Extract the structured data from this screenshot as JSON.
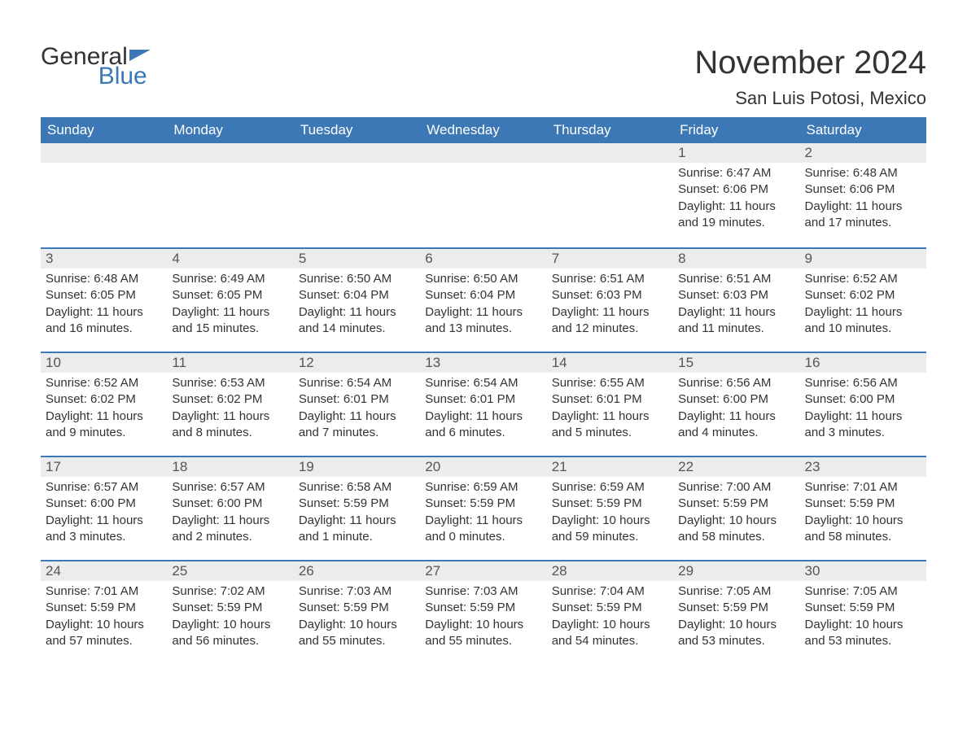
{
  "logo": {
    "text1": "General",
    "text2": "Blue"
  },
  "title": "November 2024",
  "location": "San Luis Potosi, Mexico",
  "colors": {
    "header_bg": "#3b78b5",
    "header_text": "#ffffff",
    "daynum_bg": "#ececec",
    "border": "#3b78b5",
    "text": "#333333",
    "logo_accent": "#3b78b5"
  },
  "daysOfWeek": [
    "Sunday",
    "Monday",
    "Tuesday",
    "Wednesday",
    "Thursday",
    "Friday",
    "Saturday"
  ],
  "weeks": [
    [
      null,
      null,
      null,
      null,
      null,
      {
        "n": "1",
        "sunrise": "Sunrise: 6:47 AM",
        "sunset": "Sunset: 6:06 PM",
        "daylight": "Daylight: 11 hours and 19 minutes."
      },
      {
        "n": "2",
        "sunrise": "Sunrise: 6:48 AM",
        "sunset": "Sunset: 6:06 PM",
        "daylight": "Daylight: 11 hours and 17 minutes."
      }
    ],
    [
      {
        "n": "3",
        "sunrise": "Sunrise: 6:48 AM",
        "sunset": "Sunset: 6:05 PM",
        "daylight": "Daylight: 11 hours and 16 minutes."
      },
      {
        "n": "4",
        "sunrise": "Sunrise: 6:49 AM",
        "sunset": "Sunset: 6:05 PM",
        "daylight": "Daylight: 11 hours and 15 minutes."
      },
      {
        "n": "5",
        "sunrise": "Sunrise: 6:50 AM",
        "sunset": "Sunset: 6:04 PM",
        "daylight": "Daylight: 11 hours and 14 minutes."
      },
      {
        "n": "6",
        "sunrise": "Sunrise: 6:50 AM",
        "sunset": "Sunset: 6:04 PM",
        "daylight": "Daylight: 11 hours and 13 minutes."
      },
      {
        "n": "7",
        "sunrise": "Sunrise: 6:51 AM",
        "sunset": "Sunset: 6:03 PM",
        "daylight": "Daylight: 11 hours and 12 minutes."
      },
      {
        "n": "8",
        "sunrise": "Sunrise: 6:51 AM",
        "sunset": "Sunset: 6:03 PM",
        "daylight": "Daylight: 11 hours and 11 minutes."
      },
      {
        "n": "9",
        "sunrise": "Sunrise: 6:52 AM",
        "sunset": "Sunset: 6:02 PM",
        "daylight": "Daylight: 11 hours and 10 minutes."
      }
    ],
    [
      {
        "n": "10",
        "sunrise": "Sunrise: 6:52 AM",
        "sunset": "Sunset: 6:02 PM",
        "daylight": "Daylight: 11 hours and 9 minutes."
      },
      {
        "n": "11",
        "sunrise": "Sunrise: 6:53 AM",
        "sunset": "Sunset: 6:02 PM",
        "daylight": "Daylight: 11 hours and 8 minutes."
      },
      {
        "n": "12",
        "sunrise": "Sunrise: 6:54 AM",
        "sunset": "Sunset: 6:01 PM",
        "daylight": "Daylight: 11 hours and 7 minutes."
      },
      {
        "n": "13",
        "sunrise": "Sunrise: 6:54 AM",
        "sunset": "Sunset: 6:01 PM",
        "daylight": "Daylight: 11 hours and 6 minutes."
      },
      {
        "n": "14",
        "sunrise": "Sunrise: 6:55 AM",
        "sunset": "Sunset: 6:01 PM",
        "daylight": "Daylight: 11 hours and 5 minutes."
      },
      {
        "n": "15",
        "sunrise": "Sunrise: 6:56 AM",
        "sunset": "Sunset: 6:00 PM",
        "daylight": "Daylight: 11 hours and 4 minutes."
      },
      {
        "n": "16",
        "sunrise": "Sunrise: 6:56 AM",
        "sunset": "Sunset: 6:00 PM",
        "daylight": "Daylight: 11 hours and 3 minutes."
      }
    ],
    [
      {
        "n": "17",
        "sunrise": "Sunrise: 6:57 AM",
        "sunset": "Sunset: 6:00 PM",
        "daylight": "Daylight: 11 hours and 3 minutes."
      },
      {
        "n": "18",
        "sunrise": "Sunrise: 6:57 AM",
        "sunset": "Sunset: 6:00 PM",
        "daylight": "Daylight: 11 hours and 2 minutes."
      },
      {
        "n": "19",
        "sunrise": "Sunrise: 6:58 AM",
        "sunset": "Sunset: 5:59 PM",
        "daylight": "Daylight: 11 hours and 1 minute."
      },
      {
        "n": "20",
        "sunrise": "Sunrise: 6:59 AM",
        "sunset": "Sunset: 5:59 PM",
        "daylight": "Daylight: 11 hours and 0 minutes."
      },
      {
        "n": "21",
        "sunrise": "Sunrise: 6:59 AM",
        "sunset": "Sunset: 5:59 PM",
        "daylight": "Daylight: 10 hours and 59 minutes."
      },
      {
        "n": "22",
        "sunrise": "Sunrise: 7:00 AM",
        "sunset": "Sunset: 5:59 PM",
        "daylight": "Daylight: 10 hours and 58 minutes."
      },
      {
        "n": "23",
        "sunrise": "Sunrise: 7:01 AM",
        "sunset": "Sunset: 5:59 PM",
        "daylight": "Daylight: 10 hours and 58 minutes."
      }
    ],
    [
      {
        "n": "24",
        "sunrise": "Sunrise: 7:01 AM",
        "sunset": "Sunset: 5:59 PM",
        "daylight": "Daylight: 10 hours and 57 minutes."
      },
      {
        "n": "25",
        "sunrise": "Sunrise: 7:02 AM",
        "sunset": "Sunset: 5:59 PM",
        "daylight": "Daylight: 10 hours and 56 minutes."
      },
      {
        "n": "26",
        "sunrise": "Sunrise: 7:03 AM",
        "sunset": "Sunset: 5:59 PM",
        "daylight": "Daylight: 10 hours and 55 minutes."
      },
      {
        "n": "27",
        "sunrise": "Sunrise: 7:03 AM",
        "sunset": "Sunset: 5:59 PM",
        "daylight": "Daylight: 10 hours and 55 minutes."
      },
      {
        "n": "28",
        "sunrise": "Sunrise: 7:04 AM",
        "sunset": "Sunset: 5:59 PM",
        "daylight": "Daylight: 10 hours and 54 minutes."
      },
      {
        "n": "29",
        "sunrise": "Sunrise: 7:05 AM",
        "sunset": "Sunset: 5:59 PM",
        "daylight": "Daylight: 10 hours and 53 minutes."
      },
      {
        "n": "30",
        "sunrise": "Sunrise: 7:05 AM",
        "sunset": "Sunset: 5:59 PM",
        "daylight": "Daylight: 10 hours and 53 minutes."
      }
    ]
  ]
}
